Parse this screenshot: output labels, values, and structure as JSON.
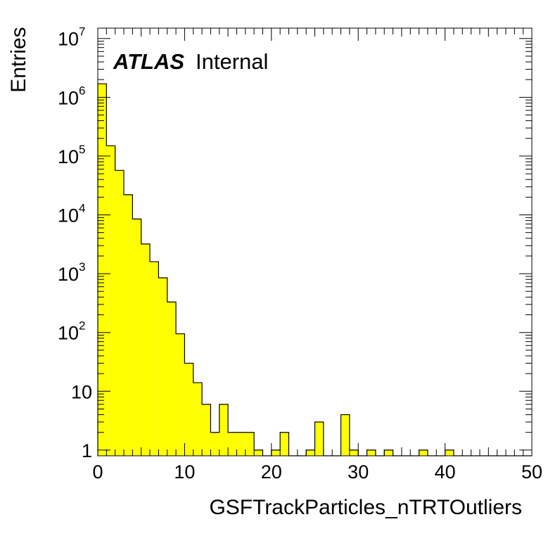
{
  "chart_data": {
    "type": "bar",
    "title": "",
    "xlabel": "GSFTrackParticles_nTRTOutliers",
    "ylabel": "Entries",
    "annotation": {
      "experiment": "ATLAS",
      "status": "Internal"
    },
    "xlim": [
      0,
      50
    ],
    "ylim": [
      0.8,
      15000000
    ],
    "yscale": "log",
    "bin_width": 1,
    "x_ticks": [
      "0",
      "10",
      "20",
      "30",
      "40",
      "50"
    ],
    "y_ticks": [
      {
        "value": 1,
        "base": "1",
        "exp": ""
      },
      {
        "value": 10,
        "base": "10",
        "exp": ""
      },
      {
        "value": 100,
        "base": "10",
        "exp": "2"
      },
      {
        "value": 1000,
        "base": "10",
        "exp": "3"
      },
      {
        "value": 10000,
        "base": "10",
        "exp": "4"
      },
      {
        "value": 100000,
        "base": "10",
        "exp": "5"
      },
      {
        "value": 1000000,
        "base": "10",
        "exp": "6"
      },
      {
        "value": 10000000,
        "base": "10",
        "exp": "7"
      }
    ],
    "fill_color": "#ffff00",
    "line_color": "#000000",
    "x": [
      0,
      1,
      2,
      3,
      4,
      5,
      6,
      7,
      8,
      9,
      10,
      11,
      12,
      13,
      14,
      15,
      16,
      17,
      18,
      19,
      20,
      21,
      22,
      23,
      24,
      25,
      26,
      27,
      28,
      29,
      30,
      31,
      32,
      33,
      34,
      35,
      36,
      37,
      38,
      39,
      40,
      41,
      42,
      43,
      44,
      45,
      46,
      47,
      48,
      49
    ],
    "values": [
      1700000,
      150000,
      57000,
      22000,
      8500,
      3200,
      1600,
      850,
      330,
      95,
      30,
      14,
      6,
      2,
      6,
      2,
      2,
      2,
      1,
      0,
      1,
      2,
      0,
      0,
      1,
      3,
      0,
      0,
      4,
      1,
      0,
      1,
      0,
      1,
      0,
      0,
      0,
      1,
      0,
      0,
      1,
      0,
      0,
      0,
      0,
      0,
      0,
      0,
      0,
      0
    ],
    "grid": false,
    "legend": "none"
  }
}
